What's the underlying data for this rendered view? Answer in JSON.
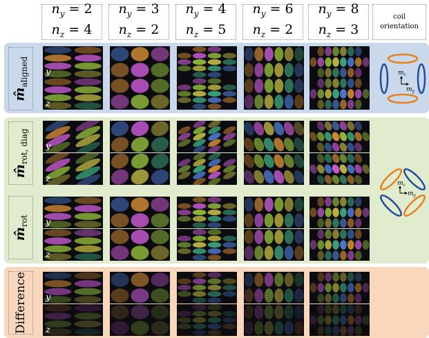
{
  "columns": [
    {
      "ny_label": "n_y = 2",
      "nz_label": "n_z = 4",
      "ny": 2,
      "nz": 4
    },
    {
      "ny_label": "n_y = 3",
      "nz_label": "n_z = 2",
      "ny": 3,
      "nz": 2
    },
    {
      "ny_label": "n_y = 4",
      "nz_label": "n_z = 5",
      "ny": 4,
      "nz": 5
    },
    {
      "ny_label": "n_y = 6",
      "nz_label": "n_z = 2",
      "ny": 6,
      "nz": 2
    },
    {
      "ny_label": "n_y = 8",
      "nz_label": "n_z = 3",
      "ny": 8,
      "nz": 3
    }
  ],
  "coil_header": {
    "line1": "coil",
    "line2": "orientation"
  },
  "rows": [
    {
      "id": "aligned",
      "symbol": "m̂",
      "subscript": "aligned"
    },
    {
      "id": "rotdiag",
      "symbol": "m̂",
      "subscript": "rot, diag"
    },
    {
      "id": "rot",
      "symbol": "m̂",
      "subscript": "rot"
    },
    {
      "id": "difference",
      "label": "Difference"
    }
  ],
  "component_labels": {
    "y": "y",
    "z": "z"
  },
  "coil_labels": {
    "mz": "m_z",
    "my": "m_y"
  },
  "colors": {
    "aligned_band": "#c9d8ea",
    "rotated_band": "#e1eccf",
    "difference_band": "#f8d7bd",
    "coil_blue": "#1f4e9c",
    "coil_orange": "#e8801e"
  }
}
